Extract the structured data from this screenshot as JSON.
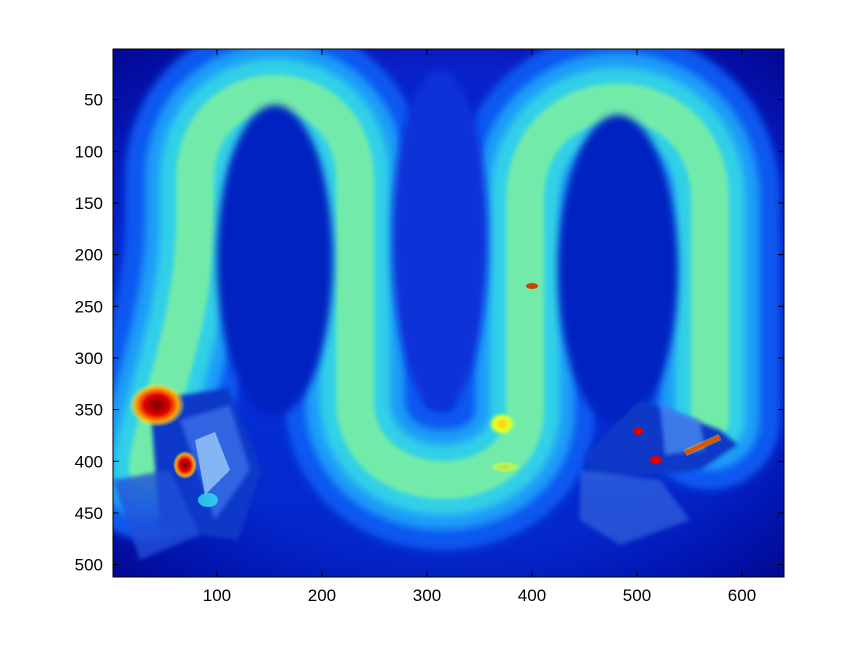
{
  "chart_data": {
    "type": "heatmap",
    "title": "",
    "xlabel": "",
    "ylabel": "",
    "colormap": "jet",
    "xlim": [
      1,
      640
    ],
    "ylim": [
      512,
      1
    ],
    "y_axis_reversed": true,
    "grid": false,
    "legend": "none",
    "x_ticks": [
      100,
      200,
      300,
      400,
      500,
      600
    ],
    "y_ticks": [
      50,
      100,
      150,
      200,
      250,
      300,
      350,
      400,
      450,
      500
    ],
    "x_tick_labels": [
      "100",
      "200",
      "300",
      "400",
      "500",
      "600"
    ],
    "y_tick_labels": [
      "50",
      "100",
      "150",
      "200",
      "250",
      "300",
      "350",
      "400",
      "450",
      "500"
    ],
    "background_color": "#0a2ed8",
    "band_color": "#4fe0c0",
    "hotspot_color": "#c80000"
  }
}
